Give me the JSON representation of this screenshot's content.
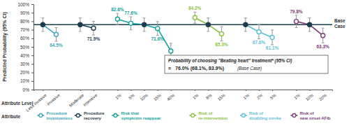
{
  "chart_data": {
    "type": "line",
    "y_label": "Predicted Probability (95% CI)",
    "x_label": "Attribute Level",
    "legend_title": "Attribute",
    "legend": "bottom",
    "marker": "circle",
    "data_labels": true,
    "categories": [
      "Less invasive",
      "Invasive",
      "Moderate",
      "Intensive",
      "1%",
      "5%",
      "10%",
      "15%",
      "40%",
      "1%",
      "8%",
      "15%",
      "1%",
      "2%",
      "5%",
      "1%",
      "10%",
      "20%"
    ],
    "ylim": [
      0,
      100
    ],
    "yticks": [
      {
        "value": 0,
        "label": "0%"
      },
      {
        "value": 10,
        "label": "10%"
      },
      {
        "value": 20,
        "label": "20%"
      },
      {
        "value": 30,
        "label": "30%"
      },
      {
        "value": 40,
        "label": "40%"
      },
      {
        "value": 50,
        "label": "50%"
      },
      {
        "value": 60,
        "label": "60%"
      },
      {
        "value": 70,
        "label": "70%"
      },
      {
        "value": 80,
        "label": "80%"
      },
      {
        "value": 90,
        "label": "90%"
      },
      {
        "value": 100,
        "label": "100%"
      }
    ],
    "base_case": {
      "value": 76.0,
      "label": "Base Case",
      "color": "#1d3d4f"
    },
    "annotation": {
      "text": "Probability of choosing \"Beating heart\" treatment* (95% CI)",
      "equals": "=",
      "value_label": "76.0% (68.1%, 83.9%)",
      "note": "(Base Case)"
    },
    "series": [
      {
        "name": "Procedure\ninvasiveness",
        "color": "#3aa6b9",
        "values": [
          76.0,
          64.5,
          null,
          null,
          null,
          null,
          null,
          null,
          null,
          null,
          null,
          null,
          null,
          null,
          null,
          null,
          null,
          null
        ],
        "ci_low": [
          68.1,
          56.5,
          null,
          null,
          null,
          null,
          null,
          null,
          null,
          null,
          null,
          null,
          null,
          null,
          null,
          null,
          null,
          null
        ],
        "ci_high": [
          83.9,
          72.5,
          null,
          null,
          null,
          null,
          null,
          null,
          null,
          null,
          null,
          null,
          null,
          null,
          null,
          null,
          null,
          null
        ],
        "value_labels": [
          null,
          "64.5%",
          null,
          null,
          null,
          null,
          null,
          null,
          null,
          null,
          null,
          null,
          null,
          null,
          null,
          null,
          null,
          null
        ]
      },
      {
        "name": "Procedure\nrecovery",
        "color": "#1d3d4f",
        "values": [
          null,
          null,
          76.0,
          71.9,
          null,
          null,
          null,
          null,
          null,
          null,
          null,
          null,
          null,
          null,
          null,
          null,
          null,
          null
        ],
        "ci_low": [
          null,
          null,
          68.1,
          63.9,
          null,
          null,
          null,
          null,
          null,
          null,
          null,
          null,
          null,
          null,
          null,
          null,
          null,
          null
        ],
        "ci_high": [
          null,
          null,
          83.9,
          79.9,
          null,
          null,
          null,
          null,
          null,
          null,
          null,
          null,
          null,
          null,
          null,
          null,
          null,
          null
        ],
        "value_labels": [
          null,
          null,
          null,
          "71.9%",
          null,
          null,
          null,
          null,
          null,
          null,
          null,
          null,
          null,
          null,
          null,
          null,
          null,
          null
        ]
      },
      {
        "name": "Risk that\nsymptoms reappear",
        "color": "#14a39a",
        "values": [
          null,
          null,
          null,
          null,
          82.6,
          77.6,
          76.0,
          71.6,
          45.1,
          null,
          null,
          null,
          null,
          null,
          null,
          null,
          null,
          null
        ],
        "ci_low": [
          null,
          null,
          null,
          null,
          76.0,
          70.0,
          68.1,
          63.6,
          36.0,
          null,
          null,
          null,
          null,
          null,
          null,
          null,
          null,
          null
        ],
        "ci_high": [
          null,
          null,
          null,
          null,
          89.2,
          85.2,
          83.9,
          79.6,
          54.2,
          null,
          null,
          null,
          null,
          null,
          null,
          null,
          null,
          null
        ],
        "value_labels": [
          null,
          null,
          null,
          null,
          "82.6%",
          "77.6%",
          null,
          "71.6%",
          "45.1%",
          null,
          null,
          null,
          null,
          null,
          null,
          null,
          null,
          null
        ]
      },
      {
        "name": "Risk of\nre-intervention",
        "color": "#8cbf3f",
        "values": [
          null,
          null,
          null,
          null,
          null,
          null,
          null,
          null,
          null,
          84.2,
          76.0,
          65.3,
          null,
          null,
          null,
          null,
          null,
          null
        ],
        "ci_low": [
          null,
          null,
          null,
          null,
          null,
          null,
          null,
          null,
          null,
          77.6,
          68.1,
          57.0,
          null,
          null,
          null,
          null,
          null,
          null
        ],
        "ci_high": [
          null,
          null,
          null,
          null,
          null,
          null,
          null,
          null,
          null,
          90.8,
          83.9,
          73.6,
          null,
          null,
          null,
          null,
          null,
          null
        ],
        "value_labels": [
          null,
          null,
          null,
          null,
          null,
          null,
          null,
          null,
          null,
          "84.2%",
          null,
          "65.3%",
          null,
          null,
          null,
          null,
          null,
          null
        ]
      },
      {
        "name": "Risk of\ndisabling stroke",
        "color": "#5bbfd6",
        "values": [
          null,
          null,
          null,
          null,
          null,
          null,
          null,
          null,
          null,
          null,
          null,
          null,
          76.0,
          67.6,
          61.1,
          null,
          null,
          null
        ],
        "ci_low": [
          null,
          null,
          null,
          null,
          null,
          null,
          null,
          null,
          null,
          null,
          null,
          null,
          68.1,
          59.4,
          52.5,
          null,
          null,
          null
        ],
        "ci_high": [
          null,
          null,
          null,
          null,
          null,
          null,
          null,
          null,
          null,
          null,
          null,
          null,
          83.9,
          75.8,
          69.7,
          null,
          null,
          null
        ],
        "value_labels": [
          null,
          null,
          null,
          null,
          null,
          null,
          null,
          null,
          null,
          null,
          null,
          null,
          null,
          "67.6%",
          "61.1%",
          null,
          null,
          null
        ]
      },
      {
        "name": "Risk of\nnew onset AFib",
        "color": "#7b3b78",
        "values": [
          null,
          null,
          null,
          null,
          null,
          null,
          null,
          null,
          null,
          null,
          null,
          null,
          null,
          null,
          null,
          79.8,
          76.0,
          63.3
        ],
        "ci_low": [
          null,
          null,
          null,
          null,
          null,
          null,
          null,
          null,
          null,
          null,
          null,
          null,
          null,
          null,
          null,
          72.6,
          68.1,
          54.6
        ],
        "ci_high": [
          null,
          null,
          null,
          null,
          null,
          null,
          null,
          null,
          null,
          null,
          null,
          null,
          null,
          null,
          null,
          87.0,
          83.9,
          72.0
        ],
        "value_labels": [
          null,
          null,
          null,
          null,
          null,
          null,
          null,
          null,
          null,
          null,
          null,
          null,
          null,
          null,
          null,
          "79.8%",
          null,
          "63.3%"
        ]
      }
    ]
  }
}
